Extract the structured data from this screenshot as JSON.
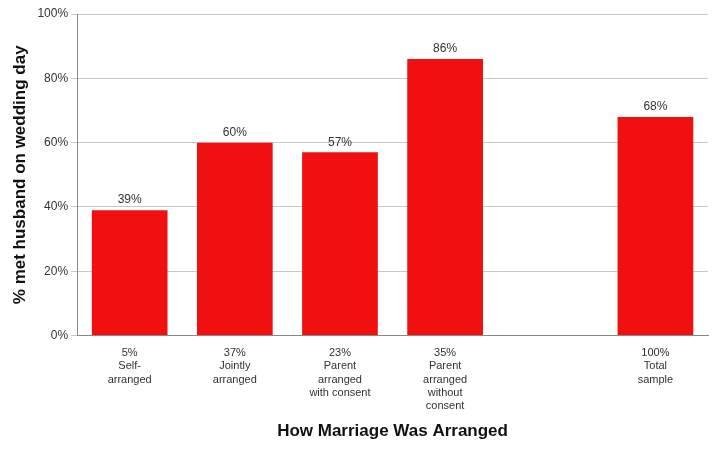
{
  "chart_data": {
    "type": "bar",
    "x_label": "How Marriage Was Arranged",
    "y_label": "% met husband on wedding day",
    "categories": [
      "5%\nSelf-\narranged",
      "37%\nJointly\narranged",
      "23%\nParent\narranged\nwith consent",
      "35%\nParent\narranged\nwithout\nconsent",
      null,
      "100%\nTotal\nsample"
    ],
    "values": [
      39,
      60,
      57,
      86,
      null,
      68
    ],
    "value_labels": [
      "39%",
      "60%",
      "57%",
      "86%",
      null,
      "68%"
    ],
    "color": "#f01010",
    "ylim": [
      0,
      100
    ],
    "yticks": [
      {
        "value": 0,
        "label": "0%"
      },
      {
        "value": 20,
        "label": "20%"
      },
      {
        "value": 40,
        "label": "40%"
      },
      {
        "value": 60,
        "label": "60%"
      },
      {
        "value": 80,
        "label": "80%"
      },
      {
        "value": 100,
        "label": "100%"
      }
    ],
    "grid": true,
    "data_labels": true
  }
}
